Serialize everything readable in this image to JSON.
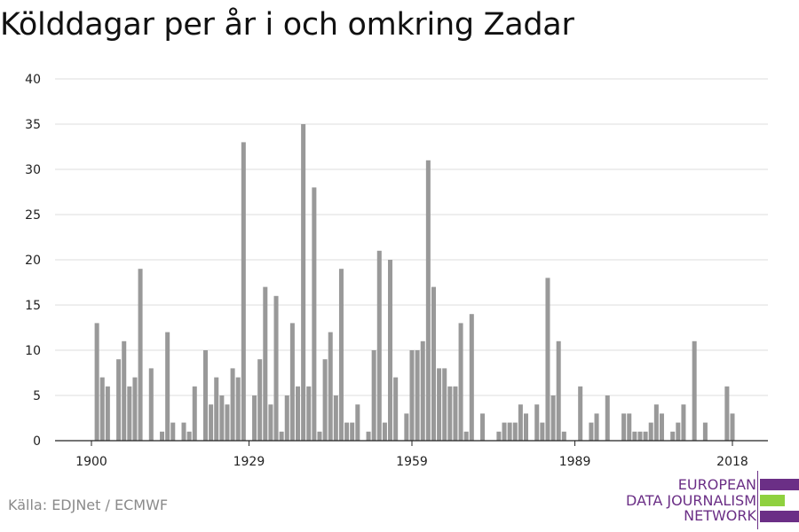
{
  "title": "Kölddagar per år i och omkring Zadar",
  "source": "Källa: EDJNet / ECMWF",
  "logo": {
    "lines": [
      "EUROPEAN",
      "DATA JOURNALISM",
      "NETWORK"
    ],
    "colors": {
      "purple": "#6b2f86",
      "green": "#8fd13f"
    }
  },
  "colors": {
    "bar": "#999999",
    "grid": "#dddddd",
    "axis": "#222222"
  },
  "chart_data": {
    "type": "bar",
    "title": "Kölddagar per år i och omkring Zadar",
    "xlabel": "",
    "ylabel": "",
    "ylim": [
      0,
      40
    ],
    "y_ticks": [
      0,
      5,
      10,
      15,
      20,
      25,
      30,
      35,
      40
    ],
    "x_ticks": [
      1900,
      1929,
      1959,
      1989,
      2018
    ],
    "x_range": [
      1900,
      2021
    ],
    "grid": true,
    "x": [
      1900,
      1901,
      1902,
      1903,
      1904,
      1905,
      1906,
      1907,
      1908,
      1909,
      1910,
      1911,
      1912,
      1913,
      1914,
      1915,
      1916,
      1917,
      1918,
      1919,
      1920,
      1921,
      1922,
      1923,
      1924,
      1925,
      1926,
      1927,
      1928,
      1929,
      1930,
      1931,
      1932,
      1933,
      1934,
      1935,
      1936,
      1937,
      1938,
      1939,
      1940,
      1941,
      1942,
      1943,
      1944,
      1945,
      1946,
      1947,
      1948,
      1949,
      1950,
      1951,
      1952,
      1953,
      1954,
      1955,
      1956,
      1957,
      1958,
      1959,
      1960,
      1961,
      1962,
      1963,
      1964,
      1965,
      1966,
      1967,
      1968,
      1969,
      1970,
      1971,
      1972,
      1973,
      1974,
      1975,
      1976,
      1977,
      1978,
      1979,
      1980,
      1981,
      1982,
      1983,
      1984,
      1985,
      1986,
      1987,
      1988,
      1989,
      1990,
      1991,
      1992,
      1993,
      1994,
      1995,
      1996,
      1997,
      1998,
      1999,
      2000,
      2001,
      2002,
      2003,
      2004,
      2005,
      2006,
      2007,
      2008,
      2009,
      2010,
      2011,
      2012,
      2013,
      2014,
      2015,
      2016,
      2017,
      2018,
      2019,
      2020,
      2021
    ],
    "values": [
      0,
      13,
      7,
      6,
      0,
      9,
      11,
      6,
      7,
      19,
      0,
      8,
      0,
      1,
      12,
      2,
      0,
      2,
      1,
      6,
      0,
      10,
      4,
      7,
      5,
      4,
      8,
      7,
      33,
      0,
      5,
      9,
      17,
      4,
      16,
      1,
      5,
      13,
      6,
      35,
      6,
      28,
      1,
      9,
      12,
      5,
      19,
      2,
      2,
      4,
      0,
      1,
      10,
      21,
      2,
      20,
      7,
      0,
      3,
      10,
      10,
      11,
      31,
      17,
      8,
      8,
      6,
      6,
      13,
      1,
      14,
      0,
      3,
      0,
      0,
      1,
      2,
      2,
      2,
      4,
      3,
      0,
      4,
      2,
      18,
      5,
      11,
      1,
      0,
      0,
      6,
      0,
      2,
      3,
      0,
      5,
      0,
      0,
      3,
      3,
      1,
      1,
      1,
      2,
      4,
      3,
      0,
      1,
      2,
      4,
      0,
      11,
      0,
      2,
      0,
      0,
      0,
      6,
      3,
      0,
      0,
      0
    ]
  }
}
